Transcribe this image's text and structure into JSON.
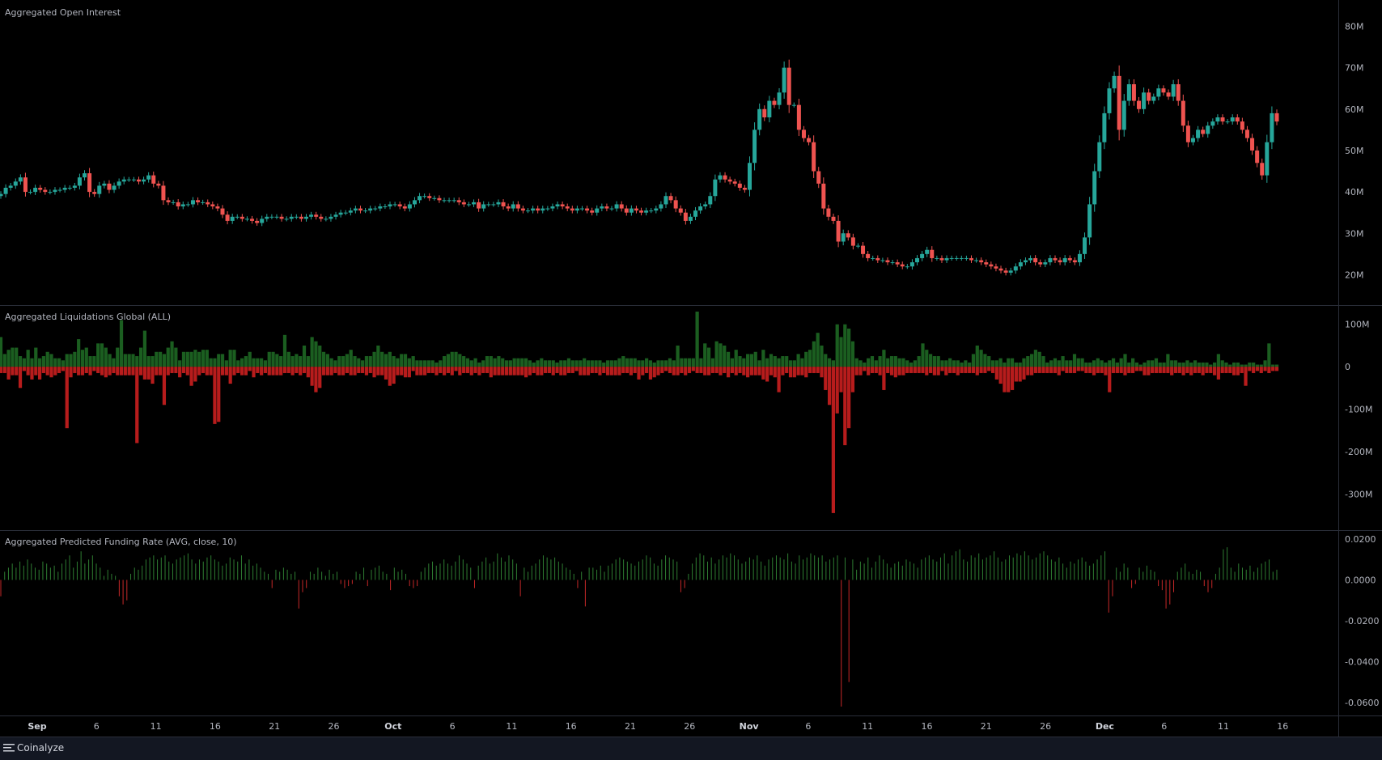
{
  "panes": [
    {
      "title": "Aggregated Open Interest"
    },
    {
      "title": "Aggregated Liquidations Global (ALL)"
    },
    {
      "title": "Aggregated Predicted Funding Rate (AVG, close, 10)"
    }
  ],
  "brand": {
    "name": "Coinalyze"
  },
  "colors": {
    "up": "#26a69a",
    "down": "#ef5350",
    "liq_long": "#1b5e20",
    "liq_short": "#b71c1c",
    "fund_pos": "#2e7d32",
    "fund_neg": "#c62828",
    "grid": "#1e222d",
    "axis_text": "#b2b5be"
  },
  "chart_data": [
    {
      "type": "candlestick",
      "title": "Aggregated Open Interest",
      "ylim": [
        15,
        84
      ],
      "y_unit": "M",
      "y_ticks": [
        "80M",
        "70M",
        "60M",
        "50M",
        "40M",
        "30M",
        "20M"
      ],
      "y_tick_values": [
        80,
        70,
        60,
        50,
        40,
        30,
        20
      ],
      "candle_closes": [
        39.5,
        41,
        41.5,
        42.5,
        43.5,
        40,
        40,
        41,
        40.5,
        40,
        40,
        40.5,
        40.5,
        41,
        41,
        41.5,
        43.5,
        44.5,
        40,
        39.5,
        41.5,
        42,
        40.5,
        41.5,
        42.5,
        43,
        43,
        43,
        42.5,
        43,
        44,
        42,
        41.5,
        38,
        37.5,
        37.5,
        36.5,
        37,
        37,
        38,
        37.5,
        37.5,
        37,
        36.5,
        36,
        34.5,
        33,
        34,
        34,
        33.5,
        33.5,
        33,
        32.5,
        33.5,
        34,
        34,
        34,
        33.5,
        33.5,
        34,
        34,
        33.5,
        34,
        34.5,
        34,
        33.5,
        33.5,
        34,
        34.5,
        35,
        35,
        35.5,
        36,
        35.5,
        35.5,
        36,
        36,
        36.5,
        36.5,
        37,
        37,
        36.5,
        36,
        37,
        38,
        39,
        39,
        38.5,
        38.5,
        38,
        38,
        38,
        38,
        37.5,
        37,
        37,
        37.5,
        36,
        37,
        37,
        37,
        37.5,
        36.5,
        36,
        37,
        36,
        35.5,
        35.5,
        36,
        35.5,
        36,
        36,
        36.5,
        37,
        36.5,
        36,
        35.5,
        36,
        36,
        35.5,
        35,
        36,
        36.5,
        36,
        36,
        37,
        36,
        35,
        36,
        35.5,
        35,
        35.5,
        35.5,
        36,
        37,
        39,
        38,
        36,
        35,
        33,
        34,
        35.5,
        36.5,
        37,
        39,
        43,
        44,
        43,
        42.5,
        42,
        41,
        40.5,
        47,
        55,
        60,
        58,
        62,
        61,
        64,
        70,
        61,
        61,
        55,
        53,
        52,
        45,
        42,
        36,
        34,
        33,
        28,
        30,
        29,
        27,
        27,
        25,
        24,
        24,
        23.5,
        23.5,
        23,
        23,
        22.5,
        22,
        22,
        23,
        24,
        25,
        26,
        24,
        24,
        23.5,
        24,
        24,
        24,
        24,
        24,
        23.5,
        23.5,
        23,
        22.5,
        22,
        21.5,
        21,
        20.5,
        21,
        22,
        23,
        23.5,
        24,
        23,
        22.5,
        23,
        24,
        23.5,
        23,
        24,
        23.5,
        23,
        25,
        29,
        37,
        45,
        52,
        59,
        65,
        68,
        55,
        62,
        66,
        62,
        60,
        64,
        62,
        63,
        65,
        64,
        63,
        66,
        62,
        56,
        52,
        53,
        55,
        54,
        56,
        57,
        58,
        57,
        57,
        58,
        57,
        55,
        53,
        50,
        47,
        44,
        52,
        59,
        57
      ]
    },
    {
      "type": "bar",
      "title": "Aggregated Liquidations Global (ALL)",
      "ylim": [
        -370,
        130
      ],
      "y_unit": "M",
      "y_ticks": [
        "100M",
        "0",
        "-100M",
        "-200M",
        "-300M"
      ],
      "y_tick_values": [
        100,
        0,
        -100,
        -200,
        -300
      ],
      "longs": [
        70,
        30,
        40,
        45,
        45,
        25,
        20,
        40,
        20,
        45,
        20,
        25,
        35,
        30,
        20,
        20,
        15,
        30,
        30,
        35,
        65,
        40,
        45,
        25,
        25,
        55,
        55,
        45,
        30,
        20,
        45,
        110,
        30,
        30,
        30,
        25,
        45,
        85,
        25,
        25,
        35,
        35,
        30,
        45,
        60,
        45,
        15,
        35,
        35,
        35,
        40,
        35,
        40,
        40,
        20,
        20,
        30,
        30,
        15,
        40,
        40,
        15,
        20,
        25,
        35,
        20,
        20,
        20,
        15,
        35,
        35,
        30,
        25,
        75,
        35,
        25,
        30,
        25,
        50,
        25,
        70,
        60,
        50,
        35,
        30,
        20,
        15,
        25,
        25,
        30,
        40,
        25,
        20,
        15,
        25,
        25,
        35,
        50,
        35,
        30,
        35,
        25,
        20,
        30,
        30,
        20,
        25,
        15,
        15,
        15,
        15,
        15,
        10,
        15,
        25,
        30,
        35,
        35,
        30,
        25,
        20,
        15,
        20,
        10,
        15,
        25,
        25,
        20,
        25,
        20,
        15,
        15,
        20,
        20,
        20,
        20,
        15,
        10,
        15,
        20,
        15,
        15,
        15,
        10,
        15,
        15,
        20,
        15,
        15,
        15,
        20,
        15,
        15,
        15,
        15,
        10,
        15,
        15,
        15,
        20,
        25,
        20,
        20,
        20,
        15,
        15,
        20,
        15,
        10,
        15,
        15,
        15,
        20,
        15,
        50,
        20,
        20,
        20,
        20,
        130,
        20,
        55,
        45,
        20,
        60,
        55,
        50,
        35,
        20,
        40,
        25,
        20,
        30,
        30,
        35,
        15,
        40,
        20,
        30,
        25,
        20,
        25,
        25,
        15,
        15,
        30,
        20,
        35,
        40,
        60,
        80,
        50,
        30,
        20,
        15,
        100,
        70,
        100,
        90,
        60,
        20,
        15,
        10,
        20,
        25,
        15,
        25,
        40,
        20,
        25,
        25,
        20,
        20,
        15,
        10,
        15,
        25,
        55,
        40,
        30,
        25,
        25,
        15,
        15,
        20,
        15,
        15,
        10,
        15,
        10,
        30,
        50,
        40,
        30,
        25,
        15,
        15,
        20,
        10,
        20,
        20,
        10,
        10,
        20,
        25,
        30,
        40,
        35,
        25,
        10,
        15,
        20,
        15,
        25,
        15,
        15,
        30,
        20,
        20,
        10,
        10,
        15,
        20,
        15,
        10,
        15,
        20,
        10,
        20,
        30,
        10,
        20,
        10,
        5,
        10,
        15,
        15,
        20,
        10,
        10,
        30,
        15,
        15,
        10,
        10,
        15,
        10,
        15,
        10,
        10,
        10,
        5,
        10,
        30,
        15,
        10,
        5,
        10,
        10,
        5,
        5,
        10,
        10,
        5,
        5,
        15,
        55,
        5,
        5
      ],
      "shorts": [
        15,
        15,
        30,
        20,
        20,
        50,
        10,
        20,
        30,
        20,
        30,
        15,
        20,
        25,
        20,
        15,
        10,
        145,
        25,
        15,
        20,
        20,
        15,
        20,
        10,
        15,
        20,
        25,
        20,
        15,
        20,
        20,
        20,
        20,
        20,
        180,
        20,
        30,
        30,
        40,
        20,
        20,
        90,
        20,
        15,
        15,
        25,
        15,
        20,
        45,
        35,
        20,
        15,
        20,
        20,
        135,
        130,
        20,
        20,
        40,
        20,
        15,
        20,
        20,
        10,
        25,
        15,
        20,
        15,
        20,
        20,
        20,
        20,
        15,
        15,
        20,
        15,
        20,
        15,
        25,
        45,
        60,
        50,
        20,
        20,
        20,
        15,
        20,
        20,
        15,
        20,
        20,
        15,
        15,
        20,
        15,
        25,
        20,
        20,
        30,
        45,
        40,
        20,
        20,
        25,
        25,
        10,
        20,
        20,
        20,
        15,
        15,
        20,
        15,
        20,
        15,
        20,
        10,
        20,
        15,
        15,
        20,
        15,
        20,
        15,
        15,
        25,
        20,
        20,
        20,
        20,
        20,
        20,
        20,
        20,
        25,
        20,
        15,
        20,
        20,
        15,
        15,
        20,
        15,
        20,
        20,
        15,
        15,
        10,
        20,
        20,
        20,
        15,
        15,
        20,
        15,
        20,
        20,
        20,
        20,
        15,
        15,
        20,
        15,
        30,
        20,
        15,
        30,
        25,
        20,
        15,
        10,
        15,
        20,
        20,
        15,
        20,
        15,
        10,
        15,
        15,
        20,
        20,
        15,
        15,
        20,
        15,
        25,
        15,
        20,
        15,
        20,
        25,
        20,
        20,
        20,
        30,
        35,
        20,
        25,
        60,
        20,
        15,
        25,
        25,
        20,
        20,
        25,
        15,
        15,
        15,
        25,
        55,
        90,
        345,
        110,
        60,
        185,
        145,
        60,
        20,
        20,
        10,
        20,
        15,
        15,
        20,
        55,
        15,
        20,
        25,
        20,
        20,
        15,
        15,
        15,
        15,
        15,
        20,
        15,
        20,
        20,
        10,
        20,
        15,
        15,
        20,
        15,
        15,
        15,
        15,
        20,
        15,
        15,
        10,
        15,
        30,
        40,
        60,
        60,
        55,
        35,
        35,
        30,
        20,
        20,
        15,
        15,
        15,
        15,
        15,
        15,
        20,
        10,
        15,
        15,
        15,
        10,
        10,
        15,
        15,
        20,
        15,
        15,
        20,
        60,
        15,
        15,
        15,
        20,
        15,
        15,
        10,
        10,
        20,
        20,
        15,
        15,
        15,
        15,
        15,
        20,
        15,
        15,
        20,
        15,
        20,
        15,
        15,
        20,
        15,
        15,
        20,
        30,
        15,
        15,
        15,
        20,
        20,
        15,
        45,
        10,
        15,
        10,
        15,
        10,
        15,
        10,
        10,
        15,
        10,
        10,
        20,
        10,
        10,
        15,
        15,
        20,
        30,
        15,
        20,
        15,
        20,
        10,
        10,
        15,
        5
      ],
      "bar_count_note": ""
    },
    {
      "type": "bar",
      "title": "Aggregated Predicted Funding Rate (AVG, close, 10)",
      "ylim": [
        -0.064,
        0.022
      ],
      "y_ticks": [
        "0.0200",
        "0.0000",
        "-0.0200",
        "-0.0400",
        "-0.0600"
      ],
      "y_tick_values": [
        0.02,
        0,
        -0.02,
        -0.04,
        -0.06
      ],
      "values": [
        -0.008,
        0.004,
        0.006,
        0.008,
        0.006,
        0.009,
        0.007,
        0.01,
        0.008,
        0.006,
        0.005,
        0.009,
        0.008,
        0.006,
        0.007,
        0.004,
        0.008,
        0.01,
        0.012,
        0.006,
        0.009,
        0.014,
        0.008,
        0.01,
        0.012,
        0.008,
        0.006,
        0.002,
        0.005,
        0.003,
        0.002,
        -0.008,
        -0.012,
        -0.01,
        0.003,
        0.006,
        0.005,
        0.007,
        0.01,
        0.011,
        0.012,
        0.01,
        0.011,
        0.012,
        0.009,
        0.008,
        0.01,
        0.011,
        0.012,
        0.013,
        0.01,
        0.008,
        0.01,
        0.009,
        0.011,
        0.012,
        0.01,
        0.009,
        0.007,
        0.008,
        0.011,
        0.01,
        0.009,
        0.012,
        0.008,
        0.01,
        0.007,
        0.008,
        0.006,
        0.004,
        0.003,
        -0.004,
        0.005,
        0.004,
        0.006,
        0.005,
        0.003,
        0.004,
        -0.014,
        -0.006,
        -0.004,
        0.004,
        0.003,
        0.006,
        0.004,
        0.002,
        0.005,
        0.003,
        0.004,
        -0.002,
        -0.004,
        -0.003,
        -0.002,
        0.004,
        0.003,
        0.006,
        -0.003,
        0.005,
        0.006,
        0.007,
        0.004,
        0.003,
        -0.005,
        0.006,
        0.004,
        0.005,
        0.003,
        -0.003,
        -0.004,
        -0.003,
        0.004,
        0.006,
        0.008,
        0.009,
        0.007,
        0.008,
        0.01,
        0.008,
        0.007,
        0.009,
        0.012,
        0.01,
        0.008,
        0.006,
        -0.004,
        0.007,
        0.009,
        0.011,
        0.008,
        0.009,
        0.013,
        0.011,
        0.009,
        0.012,
        0.01,
        0.008,
        -0.008,
        0.006,
        0.004,
        0.007,
        0.008,
        0.01,
        0.012,
        0.011,
        0.01,
        0.011,
        0.009,
        0.008,
        0.006,
        0.005,
        0.003,
        -0.004,
        0.004,
        -0.013,
        0.006,
        0.006,
        0.005,
        0.007,
        0.004,
        0.007,
        0.008,
        0.01,
        0.011,
        0.01,
        0.009,
        0.008,
        0.007,
        0.009,
        0.01,
        0.012,
        0.011,
        0.008,
        0.007,
        0.01,
        0.012,
        0.011,
        0.01,
        0.009,
        -0.006,
        -0.004,
        0.003,
        0.008,
        0.011,
        0.013,
        0.012,
        0.009,
        0.011,
        0.008,
        0.01,
        0.012,
        0.011,
        0.013,
        0.012,
        0.01,
        0.008,
        0.009,
        0.011,
        0.01,
        0.012,
        0.009,
        0.007,
        0.01,
        0.011,
        0.012,
        0.011,
        0.01,
        0.013,
        0.009,
        0.008,
        0.012,
        0.01,
        0.011,
        0.013,
        0.012,
        0.011,
        0.012,
        0.009,
        0.01,
        0.011,
        0.012,
        -0.062,
        0.011,
        -0.05,
        0.01,
        0.005,
        0.009,
        0.008,
        0.011,
        0.006,
        0.009,
        0.012,
        0.01,
        0.008,
        0.006,
        0.008,
        0.009,
        0.007,
        0.01,
        0.009,
        0.008,
        0.006,
        0.01,
        0.011,
        0.012,
        0.01,
        0.009,
        0.011,
        0.013,
        0.008,
        0.012,
        0.014,
        0.015,
        0.01,
        0.009,
        0.012,
        0.011,
        0.013,
        0.01,
        0.011,
        0.012,
        0.014,
        0.011,
        0.009,
        0.01,
        0.012,
        0.011,
        0.013,
        0.012,
        0.014,
        0.012,
        0.01,
        0.011,
        0.013,
        0.014,
        0.012,
        0.01,
        0.009,
        0.011,
        0.008,
        0.006,
        0.009,
        0.008,
        0.01,
        0.011,
        0.009,
        0.007,
        0.008,
        0.01,
        0.012,
        0.014,
        -0.016,
        -0.008,
        0.006,
        0.004,
        0.008,
        0.006,
        -0.004,
        -0.002,
        0.006,
        0.004,
        0.007,
        0.005,
        0.004,
        -0.003,
        -0.005,
        -0.014,
        -0.012,
        -0.006,
        0.004,
        0.006,
        0.008,
        0.004,
        0.003,
        0.005,
        0.004,
        -0.003,
        -0.006,
        -0.004,
        0.003,
        0.006,
        0.015,
        0.016,
        0.006,
        0.004,
        0.008,
        0.006,
        0.005,
        0.007,
        0.004,
        0.006,
        0.008,
        0.009,
        0.01,
        0.004,
        0.005
      ]
    }
  ],
  "x_axis": {
    "labels": [
      "Sep",
      "6",
      "11",
      "16",
      "21",
      "26",
      "Oct",
      "6",
      "11",
      "16",
      "21",
      "26",
      "Nov",
      "6",
      "11",
      "16",
      "21",
      "26",
      "Dec",
      "6",
      "11",
      "16"
    ],
    "bold": [
      "Sep",
      "Oct",
      "Nov",
      "Dec"
    ]
  }
}
